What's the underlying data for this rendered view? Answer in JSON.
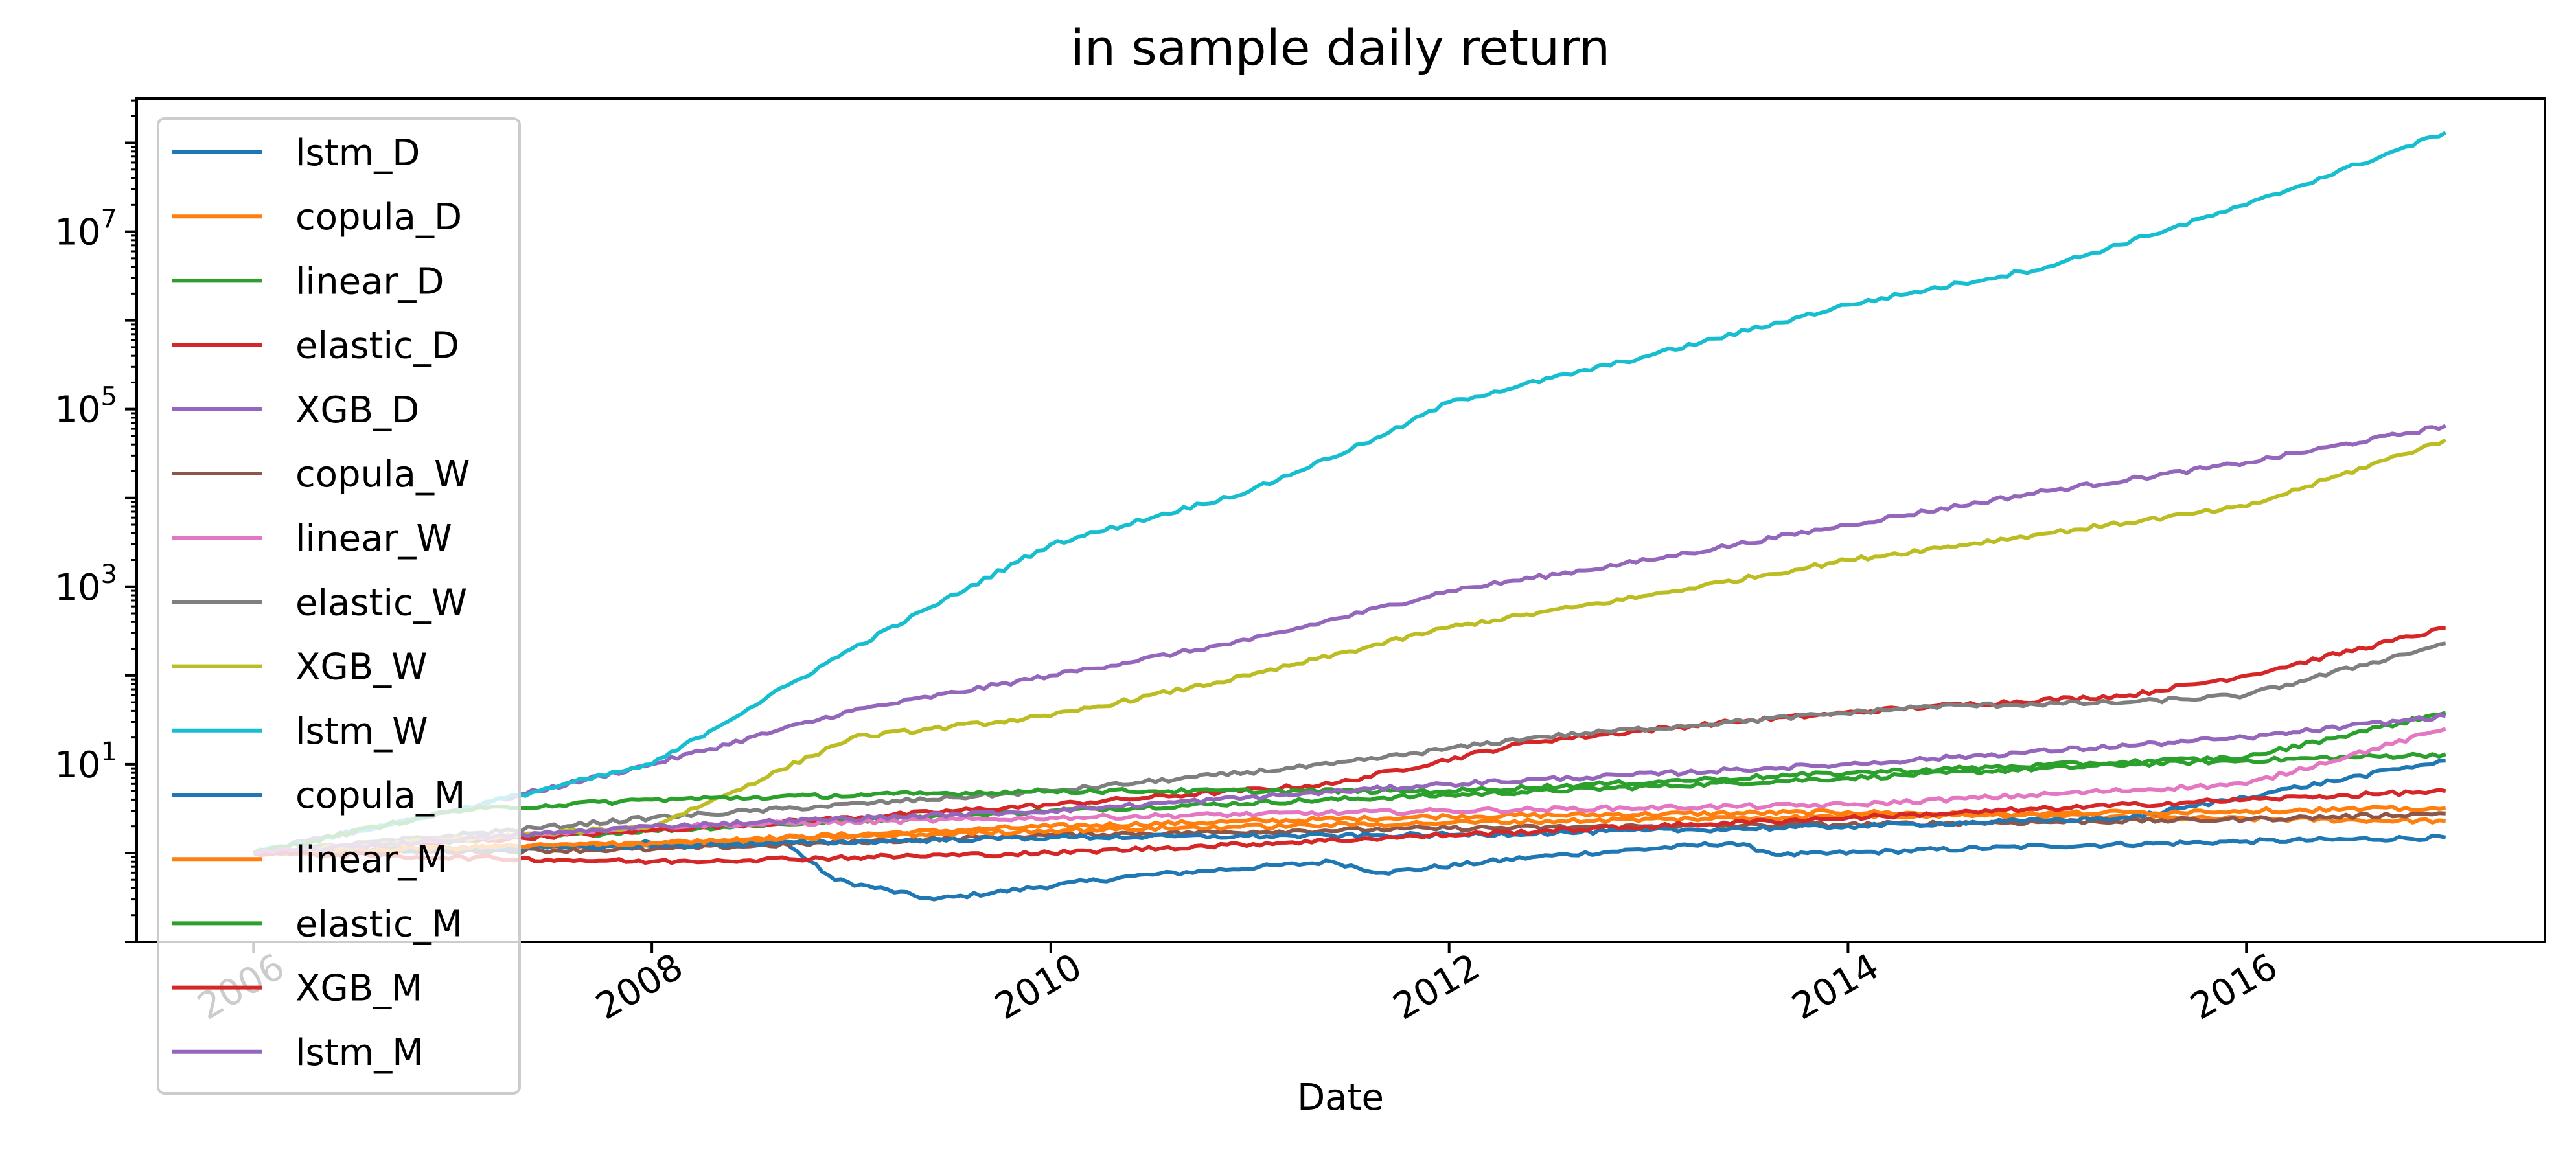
{
  "chart_data": {
    "type": "line",
    "title": "in sample daily return",
    "xlabel": "Date",
    "ylabel": "",
    "yscale": "log",
    "xlim": [
      "2005-06-01",
      "2017-07-01"
    ],
    "ylim_log10": [
      -1,
      8.5
    ],
    "x_ticks": [
      "2006",
      "2008",
      "2010",
      "2012",
      "2014",
      "2016"
    ],
    "y_ticks": [
      {
        "base": "10",
        "exp": "1",
        "value": 10
      },
      {
        "base": "10",
        "exp": "3",
        "value": 1000
      },
      {
        "base": "10",
        "exp": "5",
        "value": 100000
      },
      {
        "base": "10",
        "exp": "7",
        "value": 10000000
      }
    ],
    "grid": false,
    "legend_position": "upper left",
    "series": [
      {
        "name": "lstm_D",
        "color": "#1f77b4",
        "points": [
          [
            "2006-01-01",
            1.0
          ],
          [
            "2007-01-01",
            1.1
          ],
          [
            "2008-01-01",
            1.3
          ],
          [
            "2008-09-01",
            1.3
          ],
          [
            "2008-12-01",
            0.5
          ],
          [
            "2009-06-01",
            0.3
          ],
          [
            "2010-06-01",
            0.55
          ],
          [
            "2011-06-01",
            0.8
          ],
          [
            "2011-09-01",
            0.6
          ],
          [
            "2012-06-01",
            0.9
          ],
          [
            "2013-06-01",
            1.3
          ],
          [
            "2013-09-01",
            0.95
          ],
          [
            "2015-01-01",
            1.2
          ],
          [
            "2016-01-01",
            1.35
          ],
          [
            "2016-12-31",
            1.5
          ]
        ]
      },
      {
        "name": "copula_D",
        "color": "#ff7f0e",
        "points": [
          [
            "2006-01-01",
            1.0
          ],
          [
            "2008-01-01",
            1.3
          ],
          [
            "2010-01-01",
            2.0
          ],
          [
            "2012-01-01",
            2.6
          ],
          [
            "2014-01-01",
            2.9
          ],
          [
            "2015-06-01",
            2.5
          ],
          [
            "2016-12-31",
            2.3
          ]
        ]
      },
      {
        "name": "linear_D",
        "color": "#2ca02c",
        "points": [
          [
            "2006-01-01",
            1.0
          ],
          [
            "2008-01-01",
            1.8
          ],
          [
            "2010-01-01",
            3.0
          ],
          [
            "2012-01-01",
            4.5
          ],
          [
            "2014-01-01",
            7.0
          ],
          [
            "2015-06-01",
            10.0
          ],
          [
            "2016-12-31",
            13.0
          ]
        ]
      },
      {
        "name": "elastic_D",
        "color": "#d62728",
        "points": [
          [
            "2006-01-01",
            1.0
          ],
          [
            "2008-01-01",
            1.8
          ],
          [
            "2010-01-01",
            3.5
          ],
          [
            "2011-06-01",
            6.0
          ],
          [
            "2012-06-01",
            18.0
          ],
          [
            "2013-06-01",
            30.0
          ],
          [
            "2014-06-01",
            45.0
          ],
          [
            "2015-06-01",
            60.0
          ],
          [
            "2016-01-01",
            100.0
          ],
          [
            "2016-12-31",
            340.0
          ]
        ]
      },
      {
        "name": "XGB_D",
        "color": "#9467bd",
        "points": [
          [
            "2006-01-01",
            1.0
          ],
          [
            "2007-01-01",
            3.0
          ],
          [
            "2008-01-01",
            10.0
          ],
          [
            "2009-01-01",
            40.0
          ],
          [
            "2010-01-01",
            100.0
          ],
          [
            "2011-01-01",
            250.0
          ],
          [
            "2012-01-01",
            900.0
          ],
          [
            "2013-01-01",
            2000.0
          ],
          [
            "2014-01-01",
            5000.0
          ],
          [
            "2015-01-01",
            12000.0
          ],
          [
            "2016-01-01",
            25000.0
          ],
          [
            "2016-12-31",
            65000.0
          ]
        ]
      },
      {
        "name": "copula_W",
        "color": "#8c564b",
        "points": [
          [
            "2006-01-01",
            1.0
          ],
          [
            "2008-01-01",
            1.1
          ],
          [
            "2010-01-01",
            1.6
          ],
          [
            "2012-01-01",
            1.9
          ],
          [
            "2014-01-01",
            2.1
          ],
          [
            "2016-01-01",
            2.4
          ],
          [
            "2016-12-31",
            2.8
          ]
        ]
      },
      {
        "name": "linear_W",
        "color": "#e377c2",
        "points": [
          [
            "2006-01-01",
            1.0
          ],
          [
            "2008-01-01",
            2.0
          ],
          [
            "2010-01-01",
            2.5
          ],
          [
            "2012-01-01",
            3.0
          ],
          [
            "2014-01-01",
            3.5
          ],
          [
            "2016-01-01",
            6.0
          ],
          [
            "2016-12-31",
            25.0
          ]
        ]
      },
      {
        "name": "elastic_W",
        "color": "#7f7f7f",
        "points": [
          [
            "2006-01-01",
            1.0
          ],
          [
            "2008-01-01",
            2.5
          ],
          [
            "2010-01-01",
            5.0
          ],
          [
            "2011-06-01",
            10.0
          ],
          [
            "2012-06-01",
            20.0
          ],
          [
            "2013-06-01",
            30.0
          ],
          [
            "2014-06-01",
            45.0
          ],
          [
            "2015-06-01",
            50.0
          ],
          [
            "2016-01-01",
            60.0
          ],
          [
            "2016-12-31",
            230.0
          ]
        ]
      },
      {
        "name": "XGB_W",
        "color": "#bcbd22",
        "points": [
          [
            "2006-01-01",
            1.0
          ],
          [
            "2008-01-01",
            2.0
          ],
          [
            "2008-06-01",
            5.0
          ],
          [
            "2009-01-01",
            20.0
          ],
          [
            "2010-01-01",
            35.0
          ],
          [
            "2011-01-01",
            100.0
          ],
          [
            "2012-01-01",
            350.0
          ],
          [
            "2013-01-01",
            800.0
          ],
          [
            "2014-01-01",
            2000.0
          ],
          [
            "2015-01-01",
            4000.0
          ],
          [
            "2016-01-01",
            8000.0
          ],
          [
            "2016-12-31",
            45000.0
          ]
        ]
      },
      {
        "name": "lstm_W",
        "color": "#17becf",
        "points": [
          [
            "2006-01-01",
            1.0
          ],
          [
            "2007-01-01",
            3.0
          ],
          [
            "2008-01-01",
            10.0
          ],
          [
            "2009-01-01",
            200.0
          ],
          [
            "2010-01-01",
            3000.0
          ],
          [
            "2011-01-01",
            12000.0
          ],
          [
            "2011-09-01",
            50000.0
          ],
          [
            "2012-01-01",
            120000.0
          ],
          [
            "2013-01-01",
            400000.0
          ],
          [
            "2014-01-01",
            1500000.0
          ],
          [
            "2015-01-01",
            4000000.0
          ],
          [
            "2016-01-01",
            20000000.0
          ],
          [
            "2016-12-31",
            130000000.0
          ]
        ]
      },
      {
        "name": "copula_M",
        "color": "#1f77b4",
        "points": [
          [
            "2006-01-01",
            1.0
          ],
          [
            "2008-01-01",
            1.2
          ],
          [
            "2010-01-01",
            1.5
          ],
          [
            "2012-01-01",
            1.6
          ],
          [
            "2014-01-01",
            2.0
          ],
          [
            "2015-06-01",
            2.5
          ],
          [
            "2016-12-31",
            11.0
          ]
        ]
      },
      {
        "name": "linear_M",
        "color": "#ff7f0e",
        "points": [
          [
            "2006-01-01",
            1.0
          ],
          [
            "2008-01-01",
            1.3
          ],
          [
            "2010-01-01",
            1.8
          ],
          [
            "2012-01-01",
            2.2
          ],
          [
            "2014-01-01",
            2.6
          ],
          [
            "2016-01-01",
            3.0
          ],
          [
            "2016-12-31",
            3.2
          ]
        ]
      },
      {
        "name": "elastic_M",
        "color": "#2ca02c",
        "points": [
          [
            "2006-01-01",
            1.0
          ],
          [
            "2007-01-01",
            3.0
          ],
          [
            "2008-01-01",
            4.0
          ],
          [
            "2010-01-01",
            5.0
          ],
          [
            "2012-01-01",
            5.0
          ],
          [
            "2014-01-01",
            8.0
          ],
          [
            "2016-01-01",
            12.0
          ],
          [
            "2016-12-31",
            38.0
          ]
        ]
      },
      {
        "name": "XGB_M",
        "color": "#d62728",
        "points": [
          [
            "2006-01-01",
            1.0
          ],
          [
            "2008-01-01",
            0.8
          ],
          [
            "2010-01-01",
            1.0
          ],
          [
            "2012-01-01",
            1.6
          ],
          [
            "2014-01-01",
            2.5
          ],
          [
            "2016-01-01",
            4.0
          ],
          [
            "2016-12-31",
            5.0
          ]
        ]
      },
      {
        "name": "lstm_M",
        "color": "#9467bd",
        "points": [
          [
            "2006-01-01",
            1.0
          ],
          [
            "2008-01-01",
            2.0
          ],
          [
            "2010-01-01",
            3.0
          ],
          [
            "2012-01-01",
            6.0
          ],
          [
            "2014-01-01",
            10.0
          ],
          [
            "2016-01-01",
            20.0
          ],
          [
            "2016-12-31",
            35.0
          ]
        ]
      }
    ]
  }
}
